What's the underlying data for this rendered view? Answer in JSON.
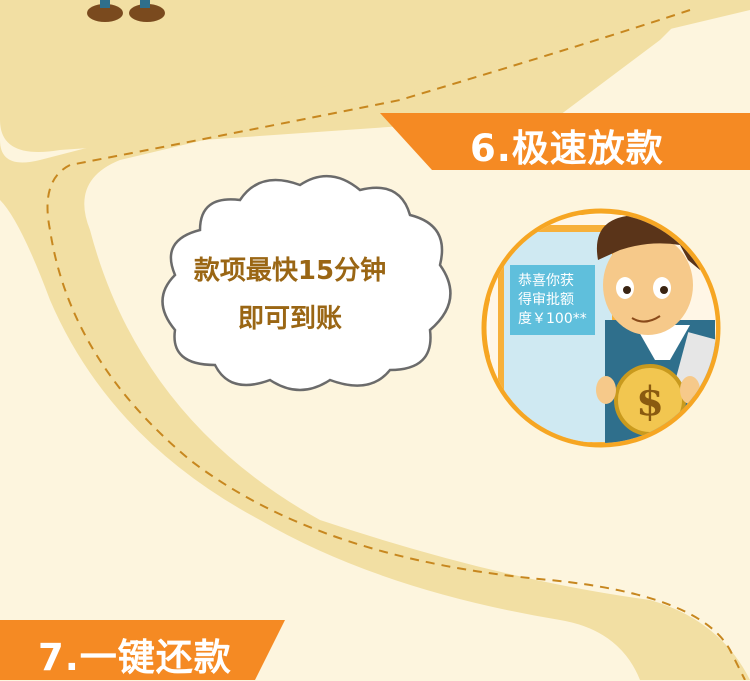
{
  "steps": {
    "step6": {
      "label": "6.极速放款"
    },
    "step7": {
      "label": "7.一键还款"
    }
  },
  "cloud": {
    "line1": "款项最快15分钟",
    "line2": "即可到账"
  },
  "screen": {
    "line1": "恭喜你获",
    "line2": "得审批额",
    "line3": "度￥100**"
  },
  "colors": {
    "background": "#fdf5de",
    "road": "#f2dfa3",
    "ribbon": "#f58a23",
    "accent_text": "#9a6614",
    "circle_border": "#f6a623"
  }
}
